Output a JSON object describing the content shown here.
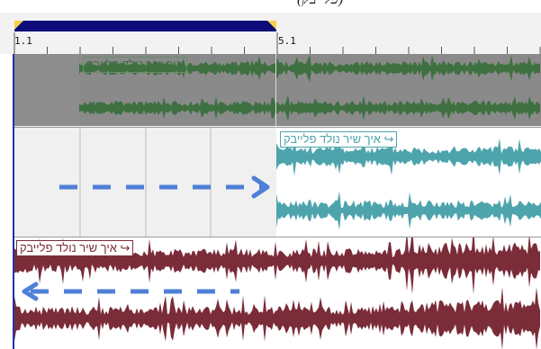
{
  "caption": {
    "text": "(פלייבק)"
  },
  "ruler": {
    "marker_start_label": "1.1",
    "marker_mid_label": "5.1"
  },
  "tracks": [
    {
      "clip_label": "איך שיר נולד פלייבק",
      "color": "#3e7040",
      "background": "#8a8a8a"
    },
    {
      "clip_label": "איך שיר נולד פלייבק ↪",
      "color": "#4ea4ad",
      "background": "#ffffff"
    },
    {
      "clip_label": "איך שיר נולד פלייבק ↪",
      "color": "#7a2c38",
      "background": "#ffffff"
    }
  ],
  "arrows": {
    "track2_direction": "right",
    "track3_direction": "left",
    "color": "#4f7fd6"
  }
}
